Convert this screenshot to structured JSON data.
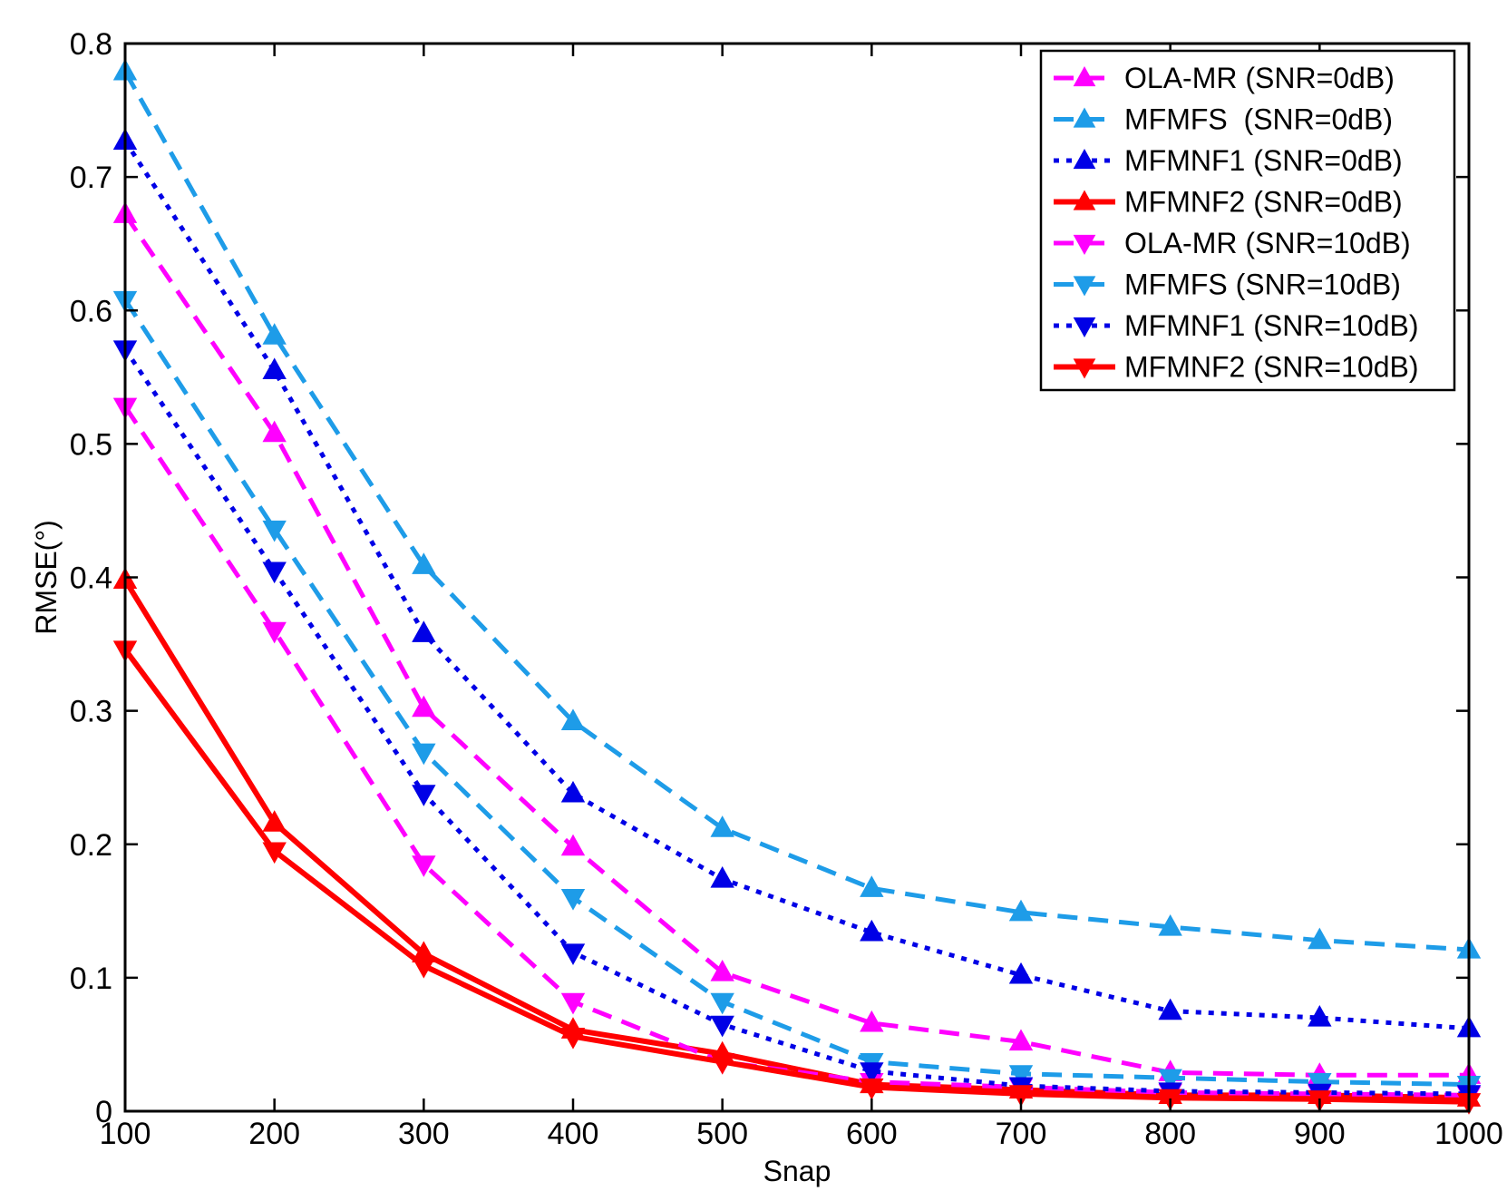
{
  "chart_data": {
    "type": "line",
    "title": "",
    "xlabel": "Snap",
    "ylabel": "RMSE(°)",
    "xlim": [
      100,
      1000
    ],
    "ylim": [
      0,
      0.8
    ],
    "xticks": [
      100,
      200,
      300,
      400,
      500,
      600,
      700,
      800,
      900,
      1000
    ],
    "yticks": [
      0,
      0.1,
      0.2,
      0.3,
      0.4,
      0.5,
      0.6,
      0.7,
      0.8
    ],
    "xtick_labels": [
      "100",
      "200",
      "300",
      "400",
      "500",
      "600",
      "700",
      "800",
      "900",
      "1000"
    ],
    "ytick_labels": [
      "0",
      "0.1",
      "0.2",
      "0.3",
      "0.4",
      "0.5",
      "0.6",
      "0.7",
      "0.8"
    ],
    "grid": false,
    "legend_position": "top-right",
    "x": [
      100,
      200,
      300,
      400,
      500,
      600,
      700,
      800,
      900,
      1000
    ],
    "series": [
      {
        "name": "OLA-MR (SNR=0dB)",
        "color": "#ff00ff",
        "dash": "dashed",
        "marker": "triangle-up",
        "values": [
          0.672,
          0.508,
          0.302,
          0.198,
          0.104,
          0.066,
          0.052,
          0.029,
          0.027,
          0.027
        ]
      },
      {
        "name": "MFMFS  (SNR=0dB)",
        "color": "#1e9ce8",
        "dash": "dashed",
        "marker": "triangle-up",
        "values": [
          0.779,
          0.581,
          0.409,
          0.292,
          0.212,
          0.167,
          0.149,
          0.138,
          0.128,
          0.121
        ]
      },
      {
        "name": "MFMNF1 (SNR=0dB)",
        "color": "#0000e6",
        "dash": "dotted",
        "marker": "triangle-up",
        "values": [
          0.727,
          0.555,
          0.358,
          0.238,
          0.174,
          0.134,
          0.102,
          0.075,
          0.07,
          0.062
        ]
      },
      {
        "name": "MFMNF2 (SNR=0dB)",
        "color": "#ff0000",
        "dash": "solid",
        "marker": "triangle-up",
        "values": [
          0.398,
          0.216,
          0.118,
          0.061,
          0.043,
          0.02,
          0.016,
          0.012,
          0.012,
          0.01
        ]
      },
      {
        "name": "OLA-MR (SNR=10dB)",
        "color": "#ff00ff",
        "dash": "dashed",
        "marker": "triangle-down",
        "values": [
          0.528,
          0.36,
          0.185,
          0.082,
          0.037,
          0.022,
          0.018,
          0.014,
          0.013,
          0.012
        ]
      },
      {
        "name": "MFMFS (SNR=10dB)",
        "color": "#1e9ce8",
        "dash": "dashed",
        "marker": "triangle-down",
        "values": [
          0.608,
          0.436,
          0.269,
          0.16,
          0.082,
          0.037,
          0.028,
          0.025,
          0.022,
          0.02
        ]
      },
      {
        "name": "MFMNF1 (SNR=10dB)",
        "color": "#0000e6",
        "dash": "dotted",
        "marker": "triangle-down",
        "values": [
          0.571,
          0.405,
          0.238,
          0.119,
          0.065,
          0.03,
          0.019,
          0.015,
          0.014,
          0.013
        ]
      },
      {
        "name": "MFMNF2 (SNR=10dB)",
        "color": "#ff0000",
        "dash": "solid",
        "marker": "triangle-down",
        "values": [
          0.346,
          0.195,
          0.109,
          0.056,
          0.037,
          0.018,
          0.013,
          0.01,
          0.009,
          0.007
        ]
      }
    ]
  }
}
